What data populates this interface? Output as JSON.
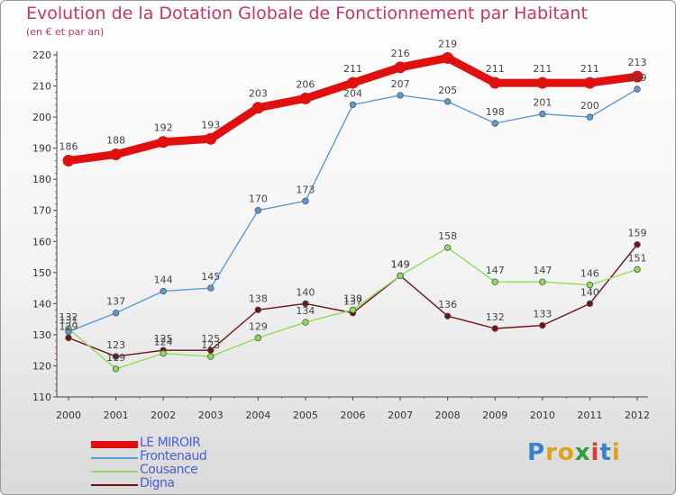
{
  "title": "Evolution de la Dotation Globale de Fonctionnement par Habitant",
  "subtitle": "(en € et par an)",
  "logo": {
    "text": "Proxiti",
    "letters": [
      {
        "ch": "P",
        "color": "#3b82c4"
      },
      {
        "ch": "r",
        "color": "#e0a020"
      },
      {
        "ch": "o",
        "color": "#e0a020"
      },
      {
        "ch": "x",
        "color": "#2e9e3e"
      },
      {
        "ch": "i",
        "color": "#d0402a"
      },
      {
        "ch": "t",
        "color": "#3b82c4"
      },
      {
        "ch": "i",
        "color": "#e0a020"
      }
    ]
  },
  "chart_data": {
    "type": "line",
    "title": "Evolution de la Dotation Globale de Fonctionnement par Habitant",
    "subtitle": "(en € et par an)",
    "x": [
      "2000",
      "2001",
      "2002",
      "2003",
      "2004",
      "2005",
      "2006",
      "2007",
      "2008",
      "2009",
      "2010",
      "2011",
      "2012"
    ],
    "yticks": [
      110,
      120,
      130,
      140,
      150,
      160,
      170,
      180,
      190,
      200,
      210,
      220
    ],
    "ylim": [
      110,
      220
    ],
    "grid": false,
    "legend_position": "bottom-left",
    "series": [
      {
        "name": "LE MIROIR",
        "color": "#e01010",
        "emphasis": "thick",
        "values": [
          186,
          188,
          192,
          193,
          203,
          206,
          211,
          216,
          219,
          211,
          211,
          211,
          213
        ]
      },
      {
        "name": "Frontenaud",
        "color": "#5b9bd5",
        "emphasis": "thin",
        "values": [
          131,
          137,
          144,
          145,
          170,
          173,
          204,
          207,
          205,
          198,
          201,
          200,
          209
        ]
      },
      {
        "name": "Cousance",
        "color": "#8fdc5a",
        "emphasis": "thin",
        "values": [
          132,
          119,
          124,
          123,
          129,
          134,
          138,
          149,
          158,
          147,
          147,
          146,
          151
        ]
      },
      {
        "name": "Digna",
        "color": "#6b1414",
        "emphasis": "thin",
        "values": [
          129,
          123,
          125,
          125,
          138,
          140,
          137,
          149,
          136,
          132,
          133,
          140,
          159
        ]
      }
    ]
  }
}
